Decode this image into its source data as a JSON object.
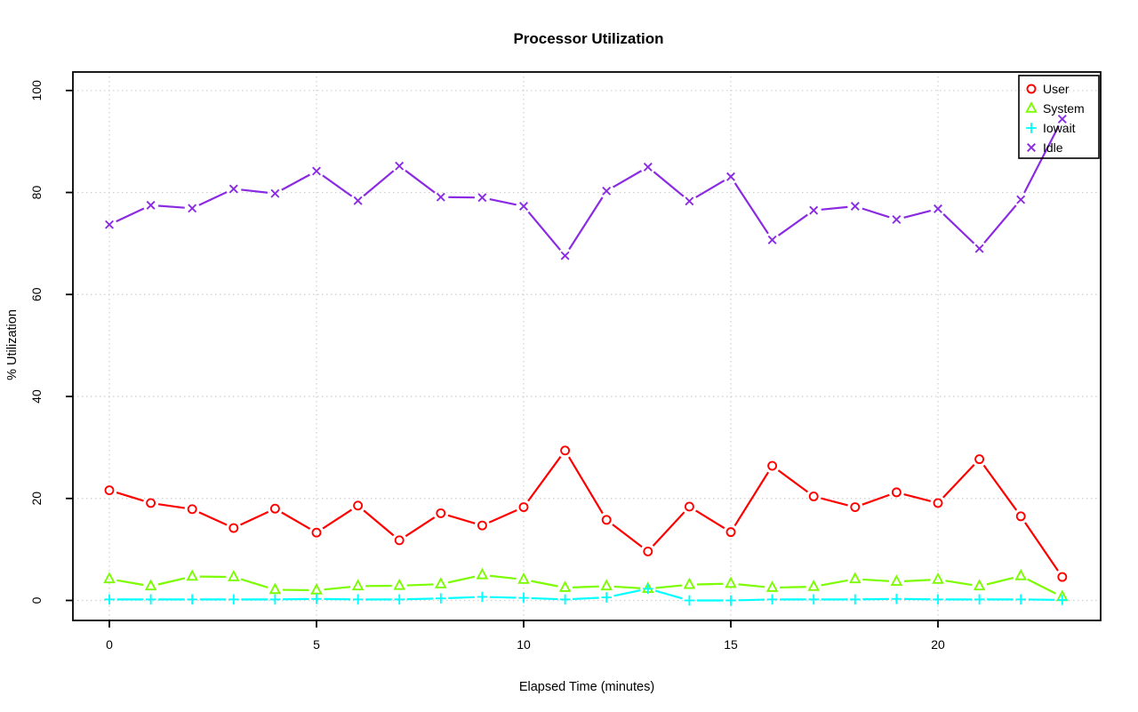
{
  "chart_data": {
    "type": "line",
    "title": "Processor Utilization",
    "xlabel": "Elapsed Time (minutes)",
    "ylabel": "% Utilization",
    "x": [
      0,
      1,
      2,
      3,
      4,
      5,
      6,
      7,
      8,
      9,
      10,
      11,
      12,
      13,
      14,
      15,
      16,
      17,
      18,
      19,
      20,
      21,
      22,
      23
    ],
    "xticks": [
      0,
      5,
      10,
      15,
      20
    ],
    "yticks": [
      0,
      20,
      40,
      60,
      80,
      100
    ],
    "xlim": [
      0,
      23
    ],
    "ylim": [
      0,
      100
    ],
    "grid": true,
    "legend_position": "top-right",
    "series": [
      {
        "name": "User",
        "color": "#ff0000",
        "marker": "circle",
        "values": [
          21.6,
          19.1,
          17.9,
          14.2,
          18.0,
          13.3,
          18.6,
          11.8,
          17.1,
          14.7,
          18.3,
          29.4,
          15.8,
          9.6,
          18.4,
          13.4,
          26.4,
          20.4,
          18.3,
          21.2,
          19.1,
          27.7,
          16.5,
          4.6
        ]
      },
      {
        "name": "System",
        "color": "#7cfc00",
        "marker": "triangle",
        "values": [
          4.2,
          2.8,
          4.7,
          4.6,
          2.1,
          2.0,
          2.8,
          2.9,
          3.2,
          5.0,
          4.1,
          2.5,
          2.8,
          2.3,
          3.1,
          3.3,
          2.5,
          2.7,
          4.2,
          3.7,
          4.1,
          2.8,
          4.8,
          0.7
        ]
      },
      {
        "name": "Iowait",
        "color": "#00ffff",
        "marker": "plus",
        "values": [
          0.2,
          0.2,
          0.2,
          0.2,
          0.2,
          0.3,
          0.2,
          0.2,
          0.4,
          0.7,
          0.5,
          0.2,
          0.6,
          2.3,
          0.0,
          0.0,
          0.2,
          0.2,
          0.2,
          0.3,
          0.2,
          0.2,
          0.2,
          0.1
        ]
      },
      {
        "name": "Idle",
        "color": "#8a2be2",
        "marker": "x",
        "values": [
          73.7,
          77.5,
          76.9,
          80.7,
          79.8,
          84.2,
          78.4,
          85.2,
          79.1,
          79.0,
          77.3,
          67.6,
          80.3,
          85.0,
          78.3,
          83.1,
          70.7,
          76.5,
          77.3,
          74.7,
          76.8,
          69.0,
          78.6,
          94.4
        ]
      }
    ],
    "colors": {
      "grid": "#cfcfcf",
      "frame": "#000000",
      "text": "#000000"
    }
  }
}
